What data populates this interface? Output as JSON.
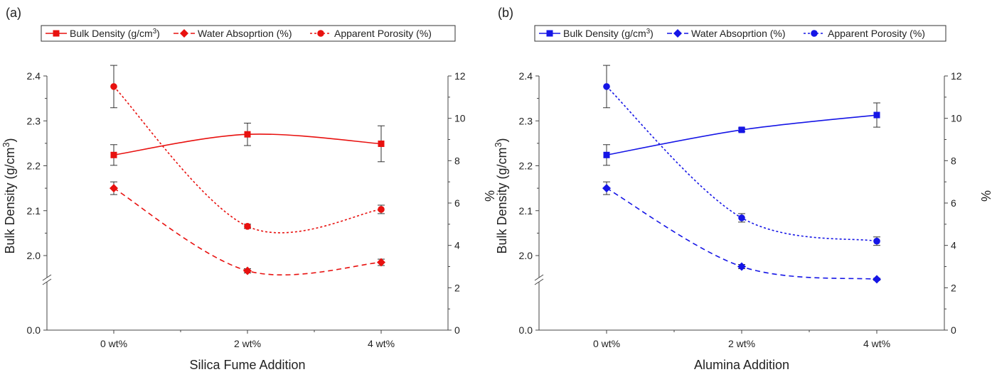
{
  "chart_data": [
    {
      "panel_label": "(a)",
      "type": "line",
      "color": "#e8110f",
      "categories": [
        "0 wt%",
        "2 wt%",
        "4 wt%"
      ],
      "xlabel": "Silica Fume Addition",
      "ylabel": "Bulk Density (g/cm³)",
      "ylabel_right": "%",
      "ylim": [
        1.95,
        2.4
      ],
      "y_break": true,
      "yticks": [
        "0.0",
        "2.0",
        "2.1",
        "2.2",
        "2.3",
        "2.4"
      ],
      "ylim_right": [
        0,
        12
      ],
      "yticks_right": [
        "0",
        "2",
        "4",
        "6",
        "8",
        "10",
        "12"
      ],
      "legend": [
        {
          "name": "Bulk Density (g/cm³)",
          "marker": "square",
          "dash": "solid"
        },
        {
          "name": "Water Absoprtion (%)",
          "marker": "diamond",
          "dash": "dashed"
        },
        {
          "name": "Apparent Porosity (%)",
          "marker": "circle",
          "dash": "dotted"
        }
      ],
      "series": [
        {
          "name": "Bulk Density (g/cm³)",
          "axis": "left",
          "values": [
            2.224,
            2.27,
            2.249
          ],
          "errors": [
            0.023,
            0.025,
            0.04
          ]
        },
        {
          "name": "Water Absoprtion (%)",
          "axis": "right",
          "values": [
            6.7,
            2.8,
            3.2
          ],
          "errors": [
            0.3,
            0.1,
            0.15
          ]
        },
        {
          "name": "Apparent Porosity (%)",
          "axis": "right",
          "values": [
            11.5,
            4.9,
            5.7
          ],
          "errors": [
            1.0,
            0.1,
            0.2
          ]
        }
      ]
    },
    {
      "panel_label": "(b)",
      "type": "line",
      "color": "#1515e6",
      "categories": [
        "0 wt%",
        "2 wt%",
        "4 wt%"
      ],
      "xlabel": "Alumina Addition",
      "ylabel": "Bulk Density (g/cm³)",
      "ylabel_right": "%",
      "ylim": [
        1.95,
        2.4
      ],
      "y_break": true,
      "yticks": [
        "0.0",
        "2.0",
        "2.1",
        "2.2",
        "2.3",
        "2.4"
      ],
      "ylim_right": [
        0,
        12
      ],
      "yticks_right": [
        "0",
        "2",
        "4",
        "6",
        "8",
        "10",
        "12"
      ],
      "legend": [
        {
          "name": "Bulk Density (g/cm³)",
          "marker": "square",
          "dash": "solid"
        },
        {
          "name": "Water Absoprtion (%)",
          "marker": "diamond",
          "dash": "dashed"
        },
        {
          "name": "Apparent Porosity (%)",
          "marker": "circle",
          "dash": "dotted"
        }
      ],
      "series": [
        {
          "name": "Bulk Density (g/cm³)",
          "axis": "left",
          "values": [
            2.224,
            2.28,
            2.313
          ],
          "errors": [
            0.023,
            0.004,
            0.027
          ]
        },
        {
          "name": "Water Absoprtion (%)",
          "axis": "right",
          "values": [
            6.7,
            3.0,
            2.4
          ],
          "errors": [
            0.3,
            0.1,
            0.05
          ]
        },
        {
          "name": "Apparent Porosity (%)",
          "axis": "right",
          "values": [
            11.5,
            5.3,
            4.2
          ],
          "errors": [
            1.0,
            0.2,
            0.2
          ]
        }
      ]
    }
  ]
}
